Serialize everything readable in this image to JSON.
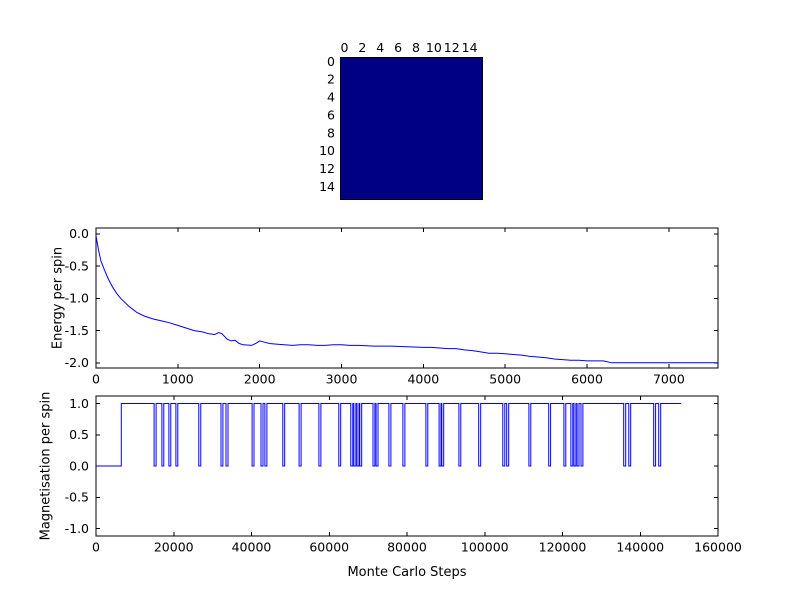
{
  "figure": {
    "background": "#ffffff",
    "line_color": "#0000ff",
    "axis_color": "#000000",
    "tick_font_px": 12.5
  },
  "chart_data": [
    {
      "type": "heatmap",
      "name": "spin-lattice",
      "grid_size": 16,
      "xticks": [
        0,
        2,
        4,
        6,
        8,
        10,
        12,
        14
      ],
      "yticks": [
        0,
        2,
        4,
        6,
        8,
        10,
        12,
        14
      ],
      "uniform_value_color": "#000084",
      "description": "16x16 Ising spin lattice, uniform single state (all dark blue)"
    },
    {
      "type": "line",
      "name": "energy-per-spin",
      "ylabel": "Energy per spin",
      "xlim": [
        0,
        7600
      ],
      "ylim": [
        -2.08,
        0.09
      ],
      "xticks": [
        0,
        1000,
        2000,
        3000,
        4000,
        5000,
        6000,
        7000
      ],
      "yticks": [
        0.0,
        -0.5,
        -1.0,
        -1.5,
        -2.0
      ],
      "ytick_labels": [
        "0.0",
        "-0.5",
        "-1.0",
        "-1.5",
        "-2.0"
      ],
      "x": [
        0,
        30,
        60,
        100,
        150,
        200,
        250,
        300,
        350,
        400,
        450,
        500,
        550,
        600,
        700,
        800,
        900,
        1000,
        1100,
        1200,
        1300,
        1380,
        1450,
        1500,
        1540,
        1600,
        1650,
        1700,
        1750,
        1800,
        1900,
        1950,
        2000,
        2060,
        2120,
        2200,
        2300,
        2400,
        2500,
        2600,
        2700,
        2800,
        2900,
        3000,
        3100,
        3200,
        3400,
        3600,
        3800,
        4000,
        4100,
        4200,
        4300,
        4400,
        4500,
        4600,
        4700,
        4800,
        4900,
        5000,
        5100,
        5200,
        5300,
        5400,
        5500,
        5600,
        5700,
        5800,
        5900,
        6000,
        6100,
        6200,
        6300,
        6400,
        7600
      ],
      "y": [
        -0.03,
        -0.25,
        -0.42,
        -0.55,
        -0.7,
        -0.82,
        -0.92,
        -1.0,
        -1.06,
        -1.12,
        -1.17,
        -1.22,
        -1.25,
        -1.28,
        -1.32,
        -1.35,
        -1.38,
        -1.42,
        -1.46,
        -1.5,
        -1.52,
        -1.55,
        -1.56,
        -1.53,
        -1.55,
        -1.63,
        -1.66,
        -1.65,
        -1.7,
        -1.72,
        -1.73,
        -1.7,
        -1.66,
        -1.68,
        -1.7,
        -1.71,
        -1.72,
        -1.73,
        -1.72,
        -1.72,
        -1.73,
        -1.73,
        -1.72,
        -1.72,
        -1.73,
        -1.73,
        -1.74,
        -1.74,
        -1.75,
        -1.76,
        -1.76,
        -1.77,
        -1.78,
        -1.78,
        -1.8,
        -1.81,
        -1.83,
        -1.85,
        -1.85,
        -1.86,
        -1.87,
        -1.88,
        -1.9,
        -1.91,
        -1.92,
        -1.94,
        -1.95,
        -1.96,
        -1.96,
        -1.97,
        -1.97,
        -1.97,
        -2.0,
        -2.0,
        -2.0
      ]
    },
    {
      "type": "line",
      "name": "magnetisation-per-spin",
      "xlabel": "Monte Carlo Steps",
      "ylabel": "Magnetisation per spin",
      "xlim": [
        0,
        160000
      ],
      "ylim": [
        -1.12,
        1.12
      ],
      "xticks": [
        0,
        20000,
        40000,
        60000,
        80000,
        100000,
        120000,
        140000,
        160000
      ],
      "yticks": [
        1.0,
        0.5,
        0.0,
        -0.5,
        -1.0
      ],
      "ytick_labels": [
        "1.0",
        "0.5",
        "0.0",
        "-0.5",
        "-1.0"
      ],
      "baseline_value": 0,
      "flip_start": 6500,
      "high_value": 1.0,
      "series_end": 150500,
      "dip_value": 0,
      "dip_width": 500,
      "dips": [
        15200,
        17200,
        19000,
        20800,
        26700,
        32400,
        33700,
        40400,
        42700,
        43700,
        48300,
        52500,
        57600,
        62700,
        65800,
        66600,
        67400,
        68100,
        71500,
        72300,
        75600,
        79200,
        85100,
        88500,
        89200,
        93600,
        98700,
        104900,
        105900,
        111600,
        116700,
        120600,
        122400,
        123200,
        124000,
        125000,
        136000,
        137300,
        143700,
        145000
      ]
    }
  ]
}
